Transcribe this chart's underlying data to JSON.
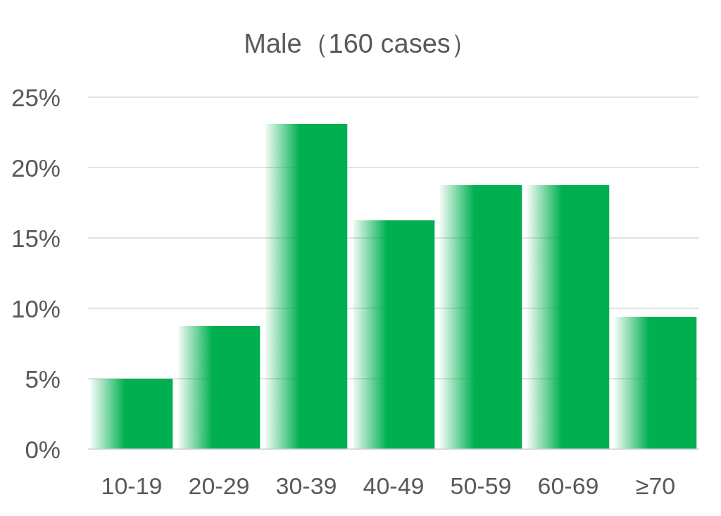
{
  "chart_data": {
    "type": "bar",
    "title": "Male（160 cases）",
    "categories": [
      "10-19",
      "20-29",
      "30-39",
      "40-49",
      "50-59",
      "60-69",
      "≥70"
    ],
    "values": [
      5.0,
      8.75,
      23.1,
      16.25,
      18.75,
      18.75,
      9.4
    ],
    "color": "#00b050",
    "ylim": [
      0,
      25
    ],
    "yticks": [
      {
        "value": 0,
        "label": "0%"
      },
      {
        "value": 5,
        "label": "5%"
      },
      {
        "value": 10,
        "label": "10%"
      },
      {
        "value": 15,
        "label": "15%"
      },
      {
        "value": 20,
        "label": "20%"
      },
      {
        "value": 25,
        "label": "25%"
      }
    ],
    "grid": "y"
  }
}
